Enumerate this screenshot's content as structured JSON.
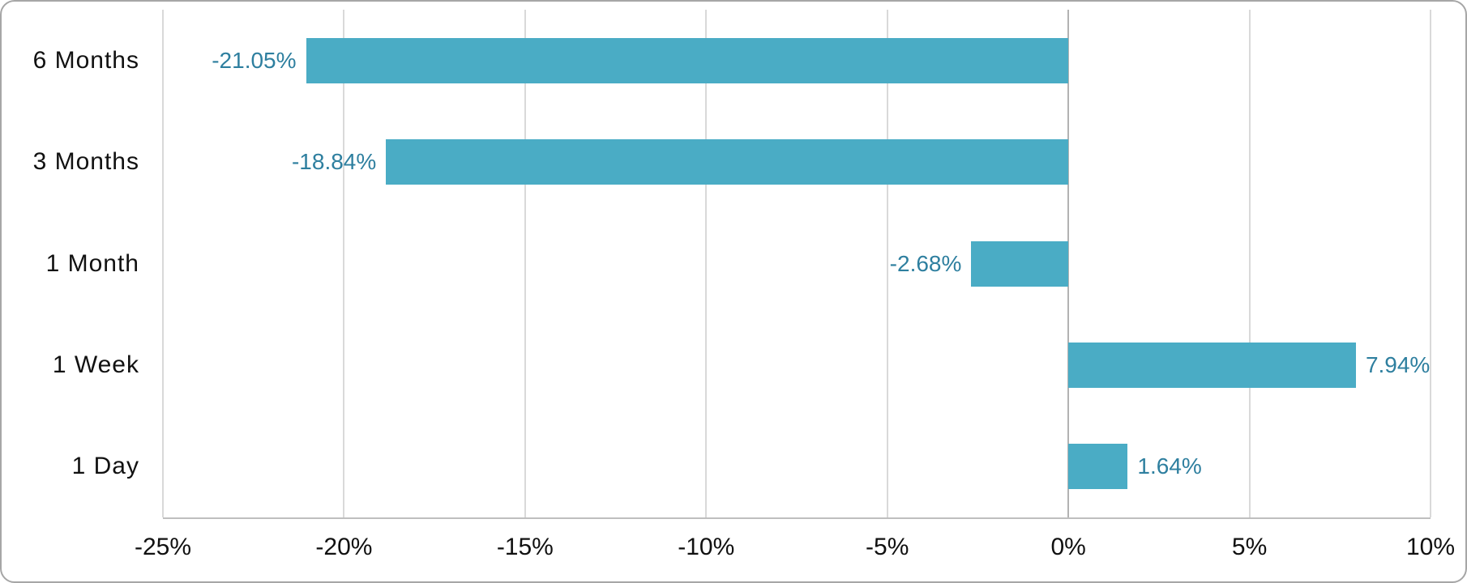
{
  "chart_data": {
    "type": "bar",
    "orientation": "horizontal",
    "title": "",
    "xlabel": "",
    "ylabel": "",
    "categories": [
      "6 Months",
      "3 Months",
      "1 Month",
      "1 Week",
      "1 Day"
    ],
    "values": [
      -21.05,
      -18.84,
      -2.68,
      7.94,
      1.64
    ],
    "value_labels": [
      "-21.05%",
      "-18.84%",
      "-2.68%",
      "7.94%",
      "1.64%"
    ],
    "x_ticks": [
      -25,
      -20,
      -15,
      -10,
      -5,
      0,
      5,
      10
    ],
    "x_tick_labels": [
      "-25%",
      "-20%",
      "-15%",
      "-10%",
      "-5%",
      "0%",
      "5%",
      "10%"
    ],
    "xlim": [
      -25,
      10
    ],
    "grid": "vertical-only",
    "legend": "none",
    "colors": {
      "bar": "#4AACC5",
      "value_label": "#2E7F9F",
      "gridline": "#D9D9D9",
      "zero_line": "#B3B3B3",
      "axis_line": "#BFBFBF",
      "text": "#111111",
      "card_border": "#A6A6A6",
      "background": "#FFFFFF"
    }
  }
}
